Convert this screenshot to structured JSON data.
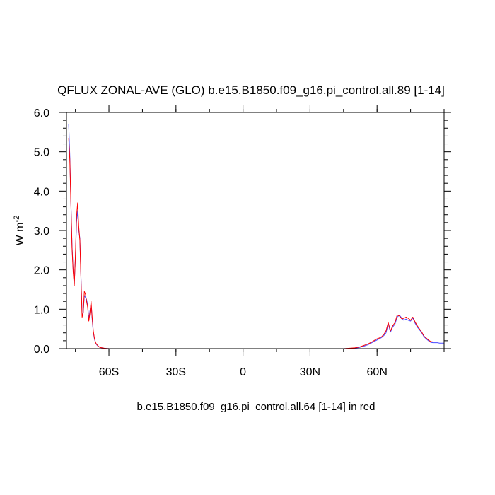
{
  "chart_data": {
    "type": "line",
    "title": "QFLUX ZONAL-AVE (GLO) b.e15.B1850.f09_g16.pi_control.all.89 [1-14]",
    "xlabel": "b.e15.B1850.f09_g16.pi_control.all.64 [1-14] in red",
    "ylabel": "W m",
    "ylabel_superscript": "-2",
    "xlim": [
      -79,
      90
    ],
    "ylim": [
      0,
      6
    ],
    "grid": false,
    "x_ticks": [
      {
        "value": -60,
        "label": "60S"
      },
      {
        "value": -30,
        "label": "30S"
      },
      {
        "value": 0,
        "label": "0"
      },
      {
        "value": 30,
        "label": "30N"
      },
      {
        "value": 60,
        "label": "60N"
      }
    ],
    "y_ticks": [
      {
        "value": 0,
        "label": "0.0"
      },
      {
        "value": 1,
        "label": "1.0"
      },
      {
        "value": 2,
        "label": "2.0"
      },
      {
        "value": 3,
        "label": "3.0"
      },
      {
        "value": 4,
        "label": "4.0"
      },
      {
        "value": 5,
        "label": "5.0"
      },
      {
        "value": 6,
        "label": "6.0"
      }
    ],
    "series": [
      {
        "color": "#4a4aff",
        "x": [
          -78,
          -77.5,
          -77,
          -76.5,
          -76,
          -75.5,
          -75,
          -74.5,
          -74,
          -73.5,
          -73,
          -72.5,
          -72,
          -71.5,
          -71,
          -70.5,
          -70,
          -69.5,
          -69,
          -68.5,
          -68,
          -67.5,
          -67,
          -66.5,
          -66,
          -65.5,
          -65,
          -64.5,
          -64,
          -63,
          -62,
          -61,
          -60,
          -58,
          -55,
          -50,
          -30,
          0,
          30,
          45,
          50,
          52,
          54,
          56,
          58,
          60,
          61,
          62,
          63,
          64,
          65,
          66,
          67,
          68,
          69,
          70,
          71,
          72,
          73,
          74,
          75,
          76,
          77,
          78,
          79,
          80,
          81,
          82,
          83,
          84,
          85,
          86,
          87,
          88,
          89,
          90
        ],
        "y": [
          5.7,
          4.9,
          3.7,
          2.6,
          2.0,
          1.65,
          2.3,
          3.2,
          3.5,
          3.0,
          2.8,
          1.8,
          0.85,
          0.9,
          1.35,
          1.3,
          1.25,
          1.1,
          0.75,
          0.95,
          1.15,
          0.75,
          0.42,
          0.25,
          0.15,
          0.1,
          0.07,
          0.05,
          0.03,
          0.02,
          0.01,
          0.005,
          0.002,
          0,
          0,
          0,
          0,
          0,
          0,
          0,
          0.01,
          0.03,
          0.06,
          0.1,
          0.16,
          0.22,
          0.25,
          0.28,
          0.33,
          0.4,
          0.63,
          0.42,
          0.55,
          0.62,
          0.8,
          0.85,
          0.78,
          0.72,
          0.75,
          0.72,
          0.7,
          0.78,
          0.65,
          0.55,
          0.48,
          0.4,
          0.3,
          0.25,
          0.2,
          0.16,
          0.15,
          0.15,
          0.15,
          0.14,
          0.14,
          0.14
        ]
      },
      {
        "color": "#ff0000",
        "x": [
          -78,
          -77.5,
          -77,
          -76.5,
          -76,
          -75.5,
          -75,
          -74.5,
          -74,
          -73.5,
          -73,
          -72.5,
          -72,
          -71.5,
          -71,
          -70.5,
          -70,
          -69.5,
          -69,
          -68.5,
          -68,
          -67.5,
          -67,
          -66.5,
          -66,
          -65.5,
          -65,
          -64.5,
          -64,
          -63,
          -62,
          -61,
          -60,
          -58,
          -55,
          -50,
          -30,
          0,
          30,
          45,
          50,
          52,
          54,
          56,
          58,
          60,
          61,
          62,
          63,
          64,
          65,
          66,
          67,
          68,
          69,
          70,
          71,
          72,
          73,
          74,
          75,
          76,
          77,
          78,
          79,
          80,
          81,
          82,
          83,
          84,
          85,
          86,
          87,
          88,
          89,
          90
        ],
        "y": [
          5.35,
          4.8,
          3.65,
          2.55,
          1.95,
          1.6,
          2.35,
          3.35,
          3.7,
          3.1,
          2.75,
          1.75,
          0.8,
          0.92,
          1.45,
          1.38,
          1.2,
          1.05,
          0.7,
          0.9,
          1.2,
          0.8,
          0.45,
          0.27,
          0.16,
          0.11,
          0.08,
          0.05,
          0.03,
          0.02,
          0.01,
          0.005,
          0.002,
          0,
          0,
          0,
          0,
          0,
          0,
          0,
          0.02,
          0.04,
          0.08,
          0.12,
          0.18,
          0.25,
          0.27,
          0.3,
          0.36,
          0.45,
          0.66,
          0.45,
          0.58,
          0.66,
          0.85,
          0.83,
          0.76,
          0.77,
          0.8,
          0.77,
          0.72,
          0.8,
          0.68,
          0.58,
          0.5,
          0.42,
          0.32,
          0.27,
          0.22,
          0.18,
          0.17,
          0.17,
          0.17,
          0.17,
          0.17,
          0.17
        ]
      }
    ]
  }
}
